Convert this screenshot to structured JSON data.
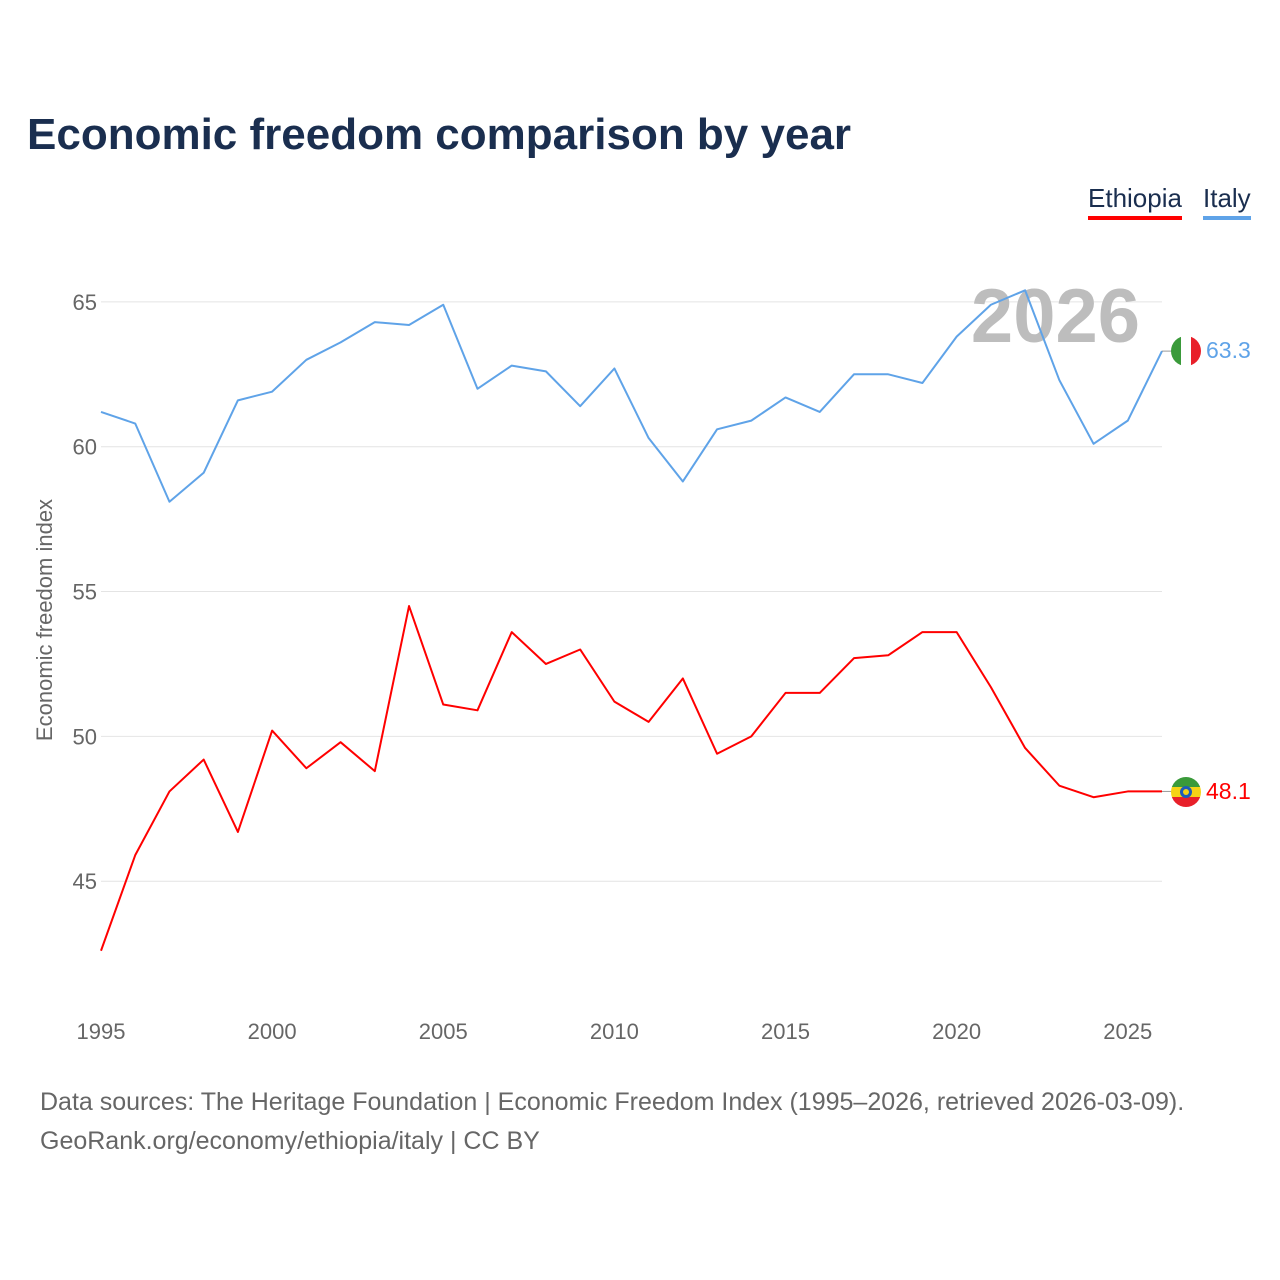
{
  "chart_data": {
    "type": "line",
    "title": "Economic freedom comparison by year",
    "ylabel": "Economic freedom index",
    "xlabel": "",
    "xlim": [
      1995,
      2026
    ],
    "ylim": [
      40.9,
      66.1
    ],
    "yticks": [
      45,
      50,
      55,
      60,
      65
    ],
    "xticks": [
      1995,
      2000,
      2005,
      2010,
      2015,
      2020,
      2025
    ],
    "grid": true,
    "legend_position": "top-right",
    "year_watermark": "2026",
    "x": [
      1995,
      1996,
      1997,
      1998,
      1999,
      2000,
      2001,
      2002,
      2003,
      2004,
      2005,
      2006,
      2007,
      2008,
      2009,
      2010,
      2011,
      2012,
      2013,
      2014,
      2015,
      2016,
      2017,
      2018,
      2019,
      2020,
      2021,
      2022,
      2023,
      2024,
      2025,
      2026
    ],
    "series": [
      {
        "name": "Ethiopia",
        "color": "#ff0000",
        "end_label": "48.1",
        "values": [
          42.6,
          45.9,
          48.1,
          49.2,
          46.7,
          50.2,
          48.9,
          49.8,
          48.8,
          54.5,
          51.1,
          50.9,
          53.6,
          52.5,
          53.0,
          51.2,
          50.5,
          52.0,
          49.4,
          50.0,
          51.5,
          51.5,
          52.7,
          52.8,
          53.6,
          53.6,
          51.7,
          49.6,
          48.3,
          47.9,
          48.1,
          48.1
        ]
      },
      {
        "name": "Italy",
        "color": "#5fa3e8",
        "end_label": "63.3",
        "values": [
          61.2,
          60.8,
          58.1,
          59.1,
          61.6,
          61.9,
          63.0,
          63.6,
          64.3,
          64.2,
          64.9,
          62.0,
          62.8,
          62.6,
          61.4,
          62.7,
          60.3,
          58.8,
          60.6,
          60.9,
          61.7,
          61.2,
          62.5,
          62.5,
          62.2,
          63.8,
          64.9,
          65.4,
          62.3,
          60.1,
          60.9,
          63.3
        ]
      }
    ]
  },
  "footer": {
    "source": "Data sources: The Heritage Foundation | Economic Freedom Index (1995–2026, retrieved 2026-03-09).",
    "credit": "GeoRank.org/economy/ethiopia/italy | CC BY"
  }
}
